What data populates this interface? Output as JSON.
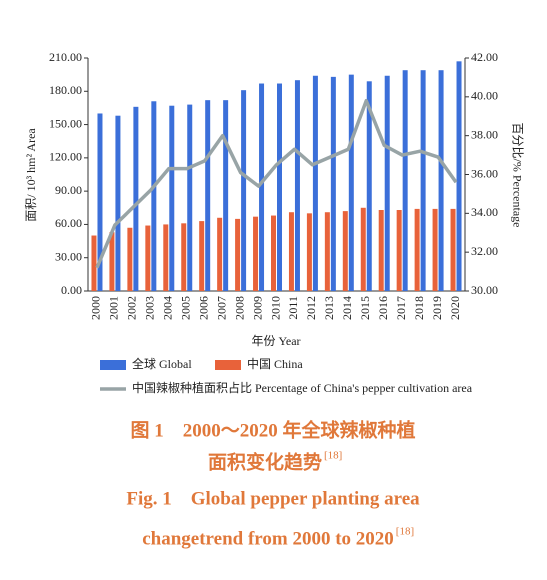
{
  "chart_data": {
    "type": "bar_line",
    "ylabel": "面积/ 10³ hm² Area",
    "y2label": "百分比/% Percentage",
    "xlabel": "年份 Year",
    "categories": [
      "2000",
      "2001",
      "2002",
      "2003",
      "2004",
      "2005",
      "2006",
      "2007",
      "2008",
      "2009",
      "2010",
      "2011",
      "2012",
      "2013",
      "2014",
      "2015",
      "2016",
      "2017",
      "2018",
      "2019",
      "2020"
    ],
    "series": [
      {
        "name": "全球 Global",
        "color": "#3b6fd9",
        "values": [
          160,
          158,
          166,
          171,
          167,
          168,
          172,
          172,
          181,
          187,
          187,
          190,
          194,
          193,
          195,
          189,
          194,
          199,
          199,
          199,
          207
        ]
      },
      {
        "name": "中国 China",
        "color": "#e8623a",
        "values": [
          50,
          53,
          57,
          59,
          60,
          61,
          63,
          66,
          65,
          67,
          68,
          71,
          70,
          71,
          72,
          75,
          73,
          73,
          74,
          74,
          74
        ]
      },
      {
        "name": "中国辣椒种植面积占比 Percentage of China's pepper cultivation area",
        "color": "#98a4a6",
        "axis": "y2",
        "values": [
          31.2,
          33.4,
          34.3,
          35.2,
          36.3,
          36.3,
          36.7,
          38.0,
          36.1,
          35.4,
          36.5,
          37.3,
          36.5,
          36.9,
          37.3,
          39.8,
          37.5,
          37.0,
          37.2,
          36.9,
          35.6
        ]
      }
    ],
    "ylim": [
      0,
      210
    ],
    "yticks": [
      {
        "value": 0,
        "label": "0.00"
      },
      {
        "value": 30,
        "label": "30.00"
      },
      {
        "value": 60,
        "label": "60.00"
      },
      {
        "value": 90,
        "label": "90.00"
      },
      {
        "value": 120,
        "label": "120.00"
      },
      {
        "value": 150,
        "label": "150.00"
      },
      {
        "value": 180,
        "label": "180.00"
      },
      {
        "value": 210,
        "label": "210.00"
      }
    ],
    "y2lim": [
      30,
      42
    ],
    "y2ticks": [
      {
        "value": 30,
        "label": "30.00"
      },
      {
        "value": 32,
        "label": "32.00"
      },
      {
        "value": 34,
        "label": "34.00"
      },
      {
        "value": 36,
        "label": "36.00"
      },
      {
        "value": 38,
        "label": "38.00"
      },
      {
        "value": 40,
        "label": "40.00"
      },
      {
        "value": 42,
        "label": "42.00"
      }
    ],
    "caption_cn": [
      "图 1　2000～2020 年全球辣椒种植",
      "面积变化趋势"
    ],
    "caption_en": [
      "Fig. 1　Global pepper planting area",
      "changetrend from 2000 to 2020"
    ],
    "reference": "[18]"
  }
}
